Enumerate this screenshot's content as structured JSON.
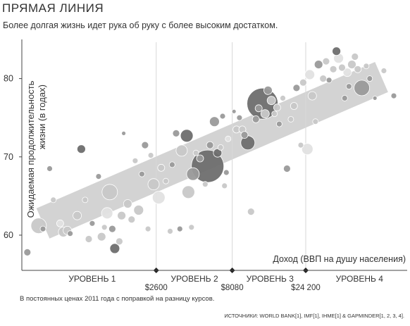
{
  "header": {
    "title": "ПРЯМАЯ ЛИНИЯ",
    "subtitle": "Более долгая жизнь идет рука об руку с более высоким достатком."
  },
  "footer": {
    "note": "В постоянных ценах 2011 года с поправкой на разницу курсов.",
    "sources": "ИСТОЧНИКИ: WORLD BANK[1], IMF[1], IHME[1] & GAPMINDER[1, 2, 3, 4]."
  },
  "chart_data": {
    "type": "scatter",
    "title": "ПРЯМАЯ ЛИНИЯ",
    "subtitle": "Более долгая жизнь идет рука об руку с более высоким достатком.",
    "ylabel_lines": [
      "Ожидаемая продолжительность",
      "жизни (в годах)"
    ],
    "xlabel": "Доход (ВВП на душу населения)",
    "x_scale": "log",
    "xlim": [
      350,
      110000
    ],
    "ylim": [
      55.5,
      85
    ],
    "y_ticks": [
      60,
      70,
      80
    ],
    "x_thresholds": [
      {
        "value": 2600,
        "label": "$2600"
      },
      {
        "value": 8080,
        "label": "$8080"
      },
      {
        "value": 24200,
        "label": "$24 200"
      }
    ],
    "levels": [
      {
        "label": "УРОВЕНЬ 1",
        "x": 1000
      },
      {
        "label": "УРОВЕНЬ 2",
        "x": 4600
      },
      {
        "label": "УРОВЕНЬ 3",
        "x": 14200
      },
      {
        "label": "УРОВЕНЬ 4",
        "x": 54000
      }
    ],
    "trend_band": {
      "x": [
        480,
        75000
      ],
      "y": [
        61.5,
        80.2
      ],
      "width_years": 4.2
    },
    "grid": false,
    "colors": {
      "dark": "#6e6e6e",
      "mid": "#9a9a9a",
      "light": "#c8c8c8",
      "pale": "#e2e2e2",
      "band": "#d3d3d3"
    },
    "points": [
      {
        "x": 380,
        "y": 57.8,
        "s": 5,
        "c": "mid"
      },
      {
        "x": 450,
        "y": 61.2,
        "s": 11,
        "c": "light"
      },
      {
        "x": 480,
        "y": 60.8,
        "s": 4,
        "c": "mid"
      },
      {
        "x": 530,
        "y": 68.5,
        "s": 4,
        "c": "mid"
      },
      {
        "x": 560,
        "y": 64.5,
        "s": 4,
        "c": "light"
      },
      {
        "x": 620,
        "y": 61.5,
        "s": 5,
        "c": "pale"
      },
      {
        "x": 650,
        "y": 60.4,
        "s": 7,
        "c": "light"
      },
      {
        "x": 690,
        "y": 60.6,
        "s": 6,
        "c": "light"
      },
      {
        "x": 720,
        "y": 60.2,
        "s": 4,
        "c": "mid"
      },
      {
        "x": 800,
        "y": 62.5,
        "s": 6,
        "c": "light"
      },
      {
        "x": 850,
        "y": 71.0,
        "s": 6,
        "c": "dark"
      },
      {
        "x": 900,
        "y": 64.5,
        "s": 4,
        "c": "light"
      },
      {
        "x": 950,
        "y": 59.5,
        "s": 5,
        "c": "light"
      },
      {
        "x": 1000,
        "y": 61.5,
        "s": 4,
        "c": "mid"
      },
      {
        "x": 1100,
        "y": 67.5,
        "s": 4,
        "c": "mid"
      },
      {
        "x": 1150,
        "y": 59.8,
        "s": 6,
        "c": "light"
      },
      {
        "x": 1200,
        "y": 61.0,
        "s": 4,
        "c": "light"
      },
      {
        "x": 1250,
        "y": 62.8,
        "s": 8,
        "c": "pale"
      },
      {
        "x": 1300,
        "y": 65.5,
        "s": 11,
        "c": "light"
      },
      {
        "x": 1350,
        "y": 60.8,
        "s": 5,
        "c": "mid"
      },
      {
        "x": 1400,
        "y": 58.3,
        "s": 7,
        "c": "dark"
      },
      {
        "x": 1500,
        "y": 59.2,
        "s": 5,
        "c": "light"
      },
      {
        "x": 1550,
        "y": 62.5,
        "s": 6,
        "c": "light"
      },
      {
        "x": 1600,
        "y": 73.0,
        "s": 3,
        "c": "mid"
      },
      {
        "x": 1700,
        "y": 64.0,
        "s": 6,
        "c": "light"
      },
      {
        "x": 1800,
        "y": 62.0,
        "s": 5,
        "c": "light"
      },
      {
        "x": 1900,
        "y": 69.5,
        "s": 4,
        "c": "light"
      },
      {
        "x": 2000,
        "y": 63.2,
        "s": 7,
        "c": "light"
      },
      {
        "x": 2100,
        "y": 67.8,
        "s": 4,
        "c": "mid"
      },
      {
        "x": 2200,
        "y": 71.5,
        "s": 5,
        "c": "mid"
      },
      {
        "x": 2300,
        "y": 60.8,
        "s": 4,
        "c": "light"
      },
      {
        "x": 2400,
        "y": 70.2,
        "s": 4,
        "c": "light"
      },
      {
        "x": 2500,
        "y": 66.5,
        "s": 8,
        "c": "light"
      },
      {
        "x": 2700,
        "y": 64.8,
        "s": 9,
        "c": "pale"
      },
      {
        "x": 2800,
        "y": 68.6,
        "s": 5,
        "c": "light"
      },
      {
        "x": 3000,
        "y": 66.9,
        "s": 4,
        "c": "light"
      },
      {
        "x": 3200,
        "y": 60.5,
        "s": 4,
        "c": "light"
      },
      {
        "x": 3300,
        "y": 69.0,
        "s": 4,
        "c": "mid"
      },
      {
        "x": 3500,
        "y": 73.0,
        "s": 5,
        "c": "mid"
      },
      {
        "x": 3700,
        "y": 60.8,
        "s": 4,
        "c": "mid"
      },
      {
        "x": 3800,
        "y": 70.8,
        "s": 8,
        "c": "light"
      },
      {
        "x": 4100,
        "y": 72.7,
        "s": 9,
        "c": "dark"
      },
      {
        "x": 4200,
        "y": 65.5,
        "s": 9,
        "c": "light"
      },
      {
        "x": 4400,
        "y": 61.0,
        "s": 4,
        "c": "light"
      },
      {
        "x": 4500,
        "y": 67.8,
        "s": 9,
        "c": "mid"
      },
      {
        "x": 4700,
        "y": 70.5,
        "s": 4,
        "c": "light"
      },
      {
        "x": 5000,
        "y": 69.8,
        "s": 5,
        "c": "mid"
      },
      {
        "x": 5400,
        "y": 66.5,
        "s": 4,
        "c": "light"
      },
      {
        "x": 5600,
        "y": 68.8,
        "s": 23,
        "c": "dark"
      },
      {
        "x": 5800,
        "y": 71.5,
        "s": 5,
        "c": "mid"
      },
      {
        "x": 6200,
        "y": 74.5,
        "s": 7,
        "c": "mid"
      },
      {
        "x": 6500,
        "y": 70.5,
        "s": 6,
        "c": "dark"
      },
      {
        "x": 6800,
        "y": 71.2,
        "s": 4,
        "c": "light"
      },
      {
        "x": 7000,
        "y": 75.2,
        "s": 4,
        "c": "mid"
      },
      {
        "x": 7200,
        "y": 66.3,
        "s": 4,
        "c": "light"
      },
      {
        "x": 7400,
        "y": 68.0,
        "s": 4,
        "c": "mid"
      },
      {
        "x": 7600,
        "y": 72.3,
        "s": 4,
        "c": "pale"
      },
      {
        "x": 8300,
        "y": 75.8,
        "s": 3,
        "c": "mid"
      },
      {
        "x": 8600,
        "y": 73.5,
        "s": 5,
        "c": "light"
      },
      {
        "x": 9000,
        "y": 75.0,
        "s": 4,
        "c": "mid"
      },
      {
        "x": 9400,
        "y": 73.5,
        "s": 5,
        "c": "light"
      },
      {
        "x": 9700,
        "y": 72.8,
        "s": 5,
        "c": "mid"
      },
      {
        "x": 10200,
        "y": 71.8,
        "s": 10,
        "c": "dark"
      },
      {
        "x": 10700,
        "y": 63.0,
        "s": 5,
        "c": "light"
      },
      {
        "x": 11500,
        "y": 74.8,
        "s": 5,
        "c": "mid"
      },
      {
        "x": 12000,
        "y": 76.2,
        "s": 5,
        "c": "mid"
      },
      {
        "x": 12700,
        "y": 76.8,
        "s": 22,
        "c": "dark"
      },
      {
        "x": 13200,
        "y": 75.5,
        "s": 6,
        "c": "light"
      },
      {
        "x": 13800,
        "y": 78.5,
        "s": 6,
        "c": "mid"
      },
      {
        "x": 14500,
        "y": 77.2,
        "s": 6,
        "c": "light"
      },
      {
        "x": 15200,
        "y": 75.5,
        "s": 4,
        "c": "light"
      },
      {
        "x": 15800,
        "y": 76.3,
        "s": 5,
        "c": "light"
      },
      {
        "x": 16300,
        "y": 74.2,
        "s": 4,
        "c": "mid"
      },
      {
        "x": 17200,
        "y": 77.5,
        "s": 4,
        "c": "light"
      },
      {
        "x": 18300,
        "y": 68.5,
        "s": 5,
        "c": "mid"
      },
      {
        "x": 19400,
        "y": 74.8,
        "s": 4,
        "c": "light"
      },
      {
        "x": 20300,
        "y": 76.5,
        "s": 5,
        "c": "light"
      },
      {
        "x": 21100,
        "y": 78.8,
        "s": 5,
        "c": "mid"
      },
      {
        "x": 22500,
        "y": 71.5,
        "s": 4,
        "c": "light"
      },
      {
        "x": 23300,
        "y": 79.5,
        "s": 5,
        "c": "light"
      },
      {
        "x": 24800,
        "y": 71.0,
        "s": 8,
        "c": "pale"
      },
      {
        "x": 25700,
        "y": 80.5,
        "s": 7,
        "c": "pale"
      },
      {
        "x": 26700,
        "y": 77.8,
        "s": 6,
        "c": "light"
      },
      {
        "x": 28000,
        "y": 74.5,
        "s": 4,
        "c": "light"
      },
      {
        "x": 29300,
        "y": 81.8,
        "s": 6,
        "c": "mid"
      },
      {
        "x": 31400,
        "y": 80.0,
        "s": 5,
        "c": "light"
      },
      {
        "x": 32800,
        "y": 82.2,
        "s": 5,
        "c": "light"
      },
      {
        "x": 34300,
        "y": 79.8,
        "s": 4,
        "c": "mid"
      },
      {
        "x": 36500,
        "y": 81.2,
        "s": 5,
        "c": "light"
      },
      {
        "x": 38300,
        "y": 83.5,
        "s": 6,
        "c": "dark"
      },
      {
        "x": 39500,
        "y": 82.6,
        "s": 7,
        "c": "pale"
      },
      {
        "x": 41600,
        "y": 81.4,
        "s": 5,
        "c": "light"
      },
      {
        "x": 43300,
        "y": 77.5,
        "s": 4,
        "c": "mid"
      },
      {
        "x": 45000,
        "y": 80.8,
        "s": 6,
        "c": "pale"
      },
      {
        "x": 46100,
        "y": 79.0,
        "s": 4,
        "c": "mid"
      },
      {
        "x": 48200,
        "y": 81.8,
        "s": 6,
        "c": "light"
      },
      {
        "x": 50400,
        "y": 82.8,
        "s": 5,
        "c": "light"
      },
      {
        "x": 52600,
        "y": 81.2,
        "s": 5,
        "c": "light"
      },
      {
        "x": 55900,
        "y": 78.8,
        "s": 11,
        "c": "mid"
      },
      {
        "x": 59700,
        "y": 81.6,
        "s": 4,
        "c": "light"
      },
      {
        "x": 62900,
        "y": 80.0,
        "s": 4,
        "c": "mid"
      },
      {
        "x": 68000,
        "y": 77.5,
        "s": 3,
        "c": "mid"
      },
      {
        "x": 77700,
        "y": 81.0,
        "s": 4,
        "c": "light"
      },
      {
        "x": 90100,
        "y": 77.8,
        "s": 4,
        "c": "mid"
      }
    ]
  }
}
